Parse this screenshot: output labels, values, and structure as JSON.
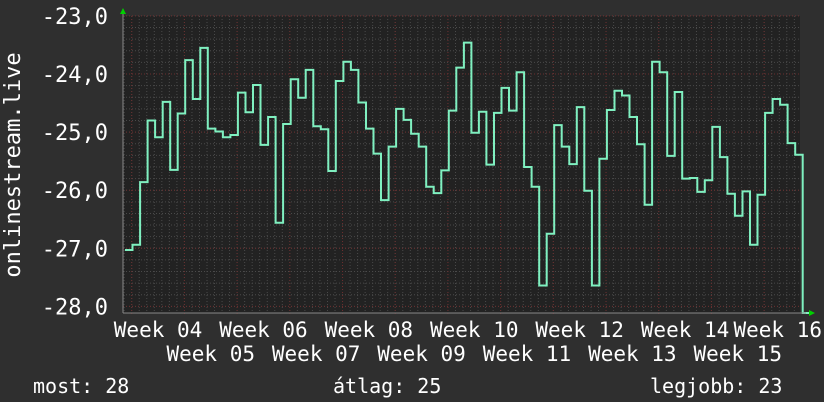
{
  "chart_data": {
    "type": "line",
    "step": true,
    "ylabel": "onlinestream.live",
    "xlabel": "",
    "ylim": [
      -28.1,
      -23.0
    ],
    "y_ticks": [
      "-23,0",
      "-24,0",
      "-25,0",
      "-26,0",
      "-27,0",
      "-28,0"
    ],
    "y_tick_values": [
      -23,
      -24,
      -25,
      -26,
      -27,
      -28
    ],
    "x_ticks": [
      "Week 04",
      "Week 05",
      "Week 06",
      "Week 07",
      "Week 08",
      "Week 09",
      "Week 10",
      "Week 11",
      "Week 12",
      "Week 13",
      "Week 14",
      "Week 15",
      "Week 16"
    ],
    "grid": true,
    "series": [
      {
        "color": "#7ff0c0",
        "values": [
          -27.03,
          -26.94,
          -25.86,
          -24.8,
          -25.09,
          -24.48,
          -25.65,
          -24.68,
          -23.76,
          -24.43,
          -23.55,
          -24.94,
          -24.99,
          -25.09,
          -25.05,
          -24.32,
          -24.66,
          -24.19,
          -25.22,
          -24.74,
          -26.56,
          -24.86,
          -24.09,
          -24.41,
          -23.93,
          -24.9,
          -24.95,
          -25.67,
          -24.12,
          -23.79,
          -23.93,
          -24.49,
          -24.94,
          -25.37,
          -26.17,
          -25.25,
          -24.6,
          -24.79,
          -25.03,
          -25.25,
          -25.94,
          -26.05,
          -25.66,
          -24.63,
          -23.89,
          -23.46,
          -25.01,
          -24.65,
          -25.56,
          -24.67,
          -24.24,
          -24.63,
          -23.97,
          -25.6,
          -25.94,
          -27.64,
          -26.75,
          -24.88,
          -25.25,
          -25.55,
          -24.57,
          -26.01,
          -27.64,
          -25.46,
          -24.62,
          -24.29,
          -24.37,
          -24.74,
          -25.21,
          -26.25,
          -23.79,
          -23.97,
          -25.41,
          -24.31,
          -25.8,
          -25.79,
          -26.03,
          -25.83,
          -24.91,
          -25.43,
          -26.06,
          -26.44,
          -26.02,
          -26.94,
          -26.08,
          -24.67,
          -24.43,
          -24.53,
          -25.19,
          -25.39,
          -28.16
        ]
      }
    ]
  },
  "colors": {
    "background": "#2f2f2f",
    "plot_background": "#222222",
    "grid_minor": "#4a4a4a",
    "grid_major": "#6a2e2e",
    "line": "#7ff0c0",
    "arrow": "#00d000"
  },
  "legend": {
    "current": "most: 28",
    "average": "átlag: 25",
    "best": "legjobb: 23"
  }
}
